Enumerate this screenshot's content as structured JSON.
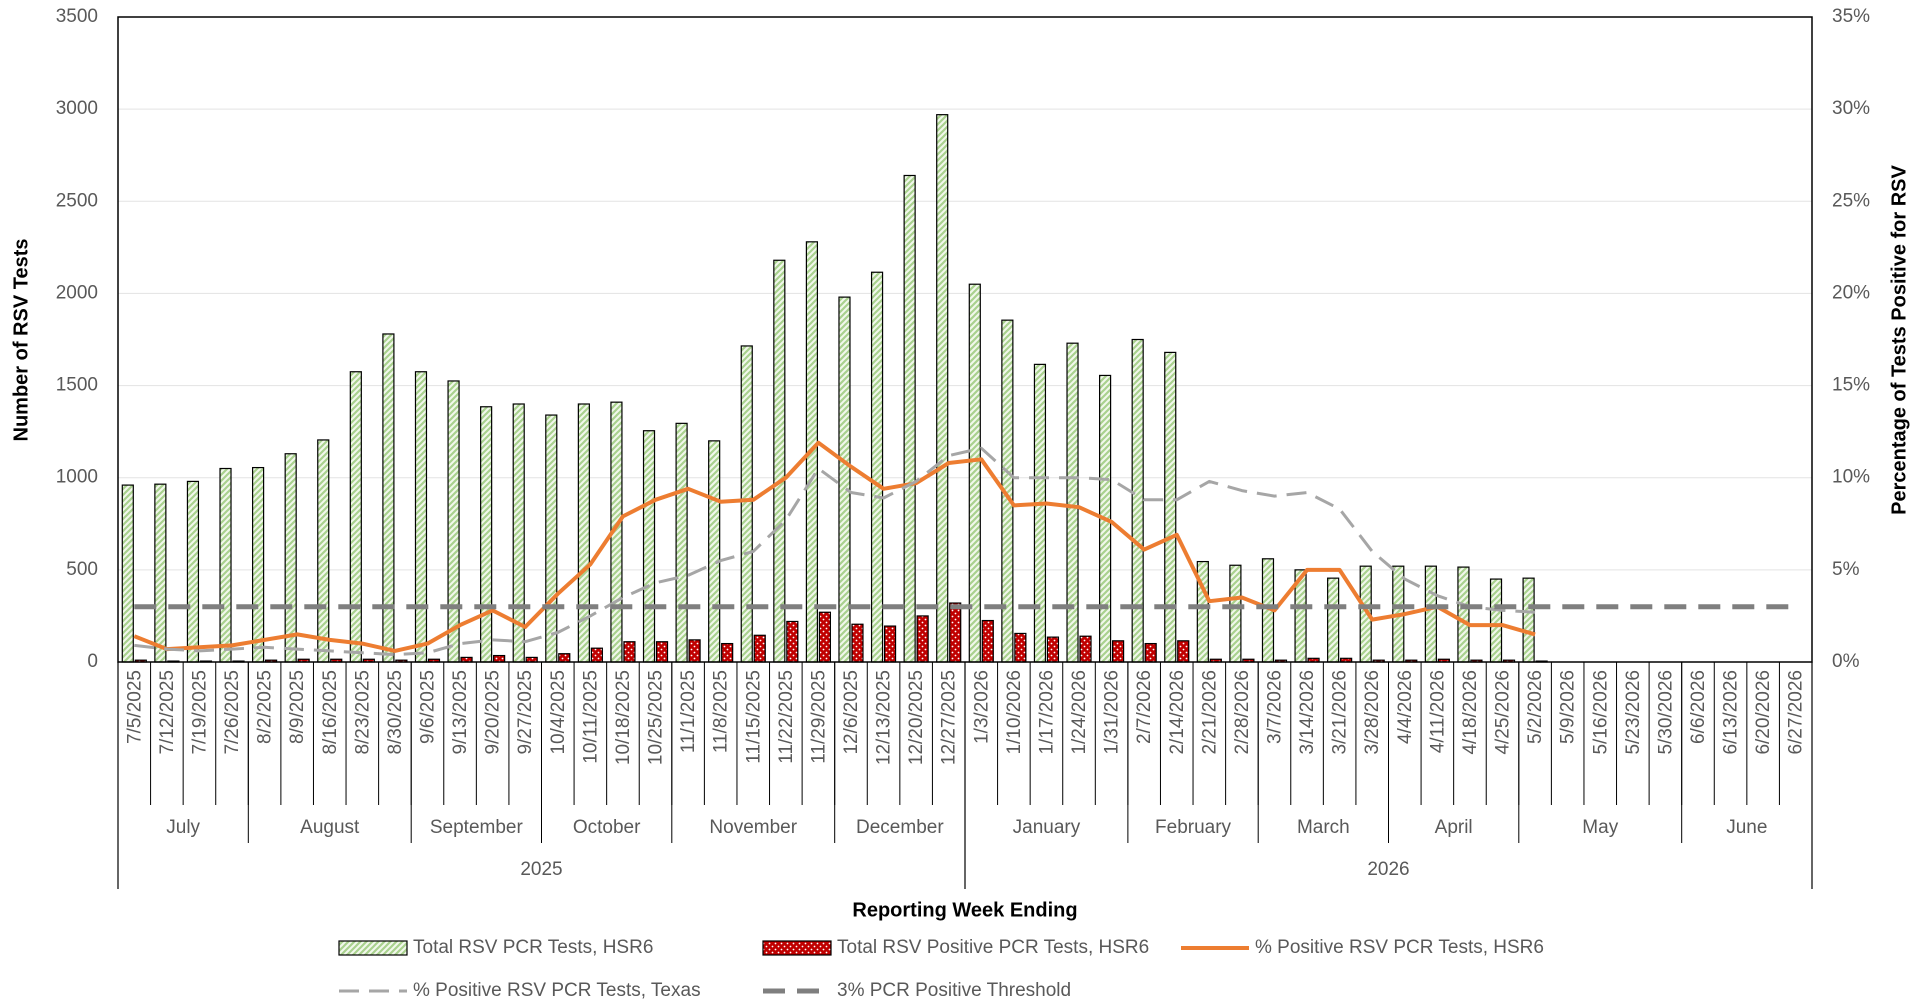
{
  "chart_data": {
    "type": "bar",
    "x_title": "Reporting Week Ending",
    "y_title": "Number of RSV Tests",
    "y2_title": "Percentage of Tests Positive for RSV",
    "x": [
      "7/5/2025",
      "7/12/2025",
      "7/19/2025",
      "7/26/2025",
      "8/2/2025",
      "8/9/2025",
      "8/16/2025",
      "8/23/2025",
      "8/30/2025",
      "9/6/2025",
      "9/13/2025",
      "9/20/2025",
      "9/27/2025",
      "10/4/2025",
      "10/11/2025",
      "10/18/2025",
      "10/25/2025",
      "11/1/2025",
      "11/8/2025",
      "11/15/2025",
      "11/22/2025",
      "11/29/2025",
      "12/6/2025",
      "12/13/2025",
      "12/20/2025",
      "12/27/2025",
      "1/3/2026",
      "1/10/2026",
      "1/17/2026",
      "1/24/2026",
      "1/31/2026",
      "2/7/2026",
      "2/14/2026",
      "2/21/2026",
      "2/28/2026",
      "3/7/2026",
      "3/14/2026",
      "3/21/2026",
      "3/28/2026",
      "4/4/2026",
      "4/11/2026",
      "4/18/2026",
      "4/25/2026",
      "5/2/2026",
      "5/9/2026",
      "5/16/2026",
      "5/23/2026",
      "5/30/2026",
      "6/6/2026",
      "6/13/2026",
      "6/20/2026",
      "6/27/2026"
    ],
    "months": [
      "July",
      "August",
      "September",
      "October",
      "November",
      "December",
      "January",
      "February",
      "March",
      "April",
      "May",
      "June"
    ],
    "years": [
      "2025",
      "2026"
    ],
    "ylim": [
      0,
      3500
    ],
    "yticks": [
      0,
      500,
      1000,
      1500,
      2000,
      2500,
      3000,
      3500
    ],
    "y2lim": [
      0,
      35
    ],
    "y2ticks": [
      {
        "value": 0,
        "label": "0%"
      },
      {
        "value": 5,
        "label": "5%"
      },
      {
        "value": 10,
        "label": "10%"
      },
      {
        "value": 15,
        "label": "15%"
      },
      {
        "value": 20,
        "label": "20%"
      },
      {
        "value": 25,
        "label": "25%"
      },
      {
        "value": 30,
        "label": "30%"
      },
      {
        "value": 35,
        "label": "35%"
      }
    ],
    "grid": true,
    "legend": "bottom",
    "series": [
      {
        "name": "Total RSV PCR Tests, HSR6",
        "type": "bar",
        "pattern": "hatch",
        "color": "#a9d18e",
        "values": [
          960,
          965,
          980,
          1050,
          1055,
          1130,
          1205,
          1575,
          1780,
          1575,
          1525,
          1385,
          1400,
          1340,
          1400,
          1410,
          1255,
          1295,
          1200,
          1715,
          2180,
          2280,
          1980,
          2115,
          2640,
          2970,
          2050,
          1855,
          1615,
          1730,
          1555,
          1750,
          1680,
          545,
          525,
          560,
          500,
          455,
          520,
          520,
          520,
          515,
          450,
          455,
          null,
          null,
          null,
          null,
          null,
          null,
          null,
          null
        ]
      },
      {
        "name": "Total RSV Positive PCR Tests, HSR6",
        "type": "bar",
        "pattern": "dots",
        "color": "#c00000",
        "values": [
          10,
          5,
          5,
          5,
          10,
          15,
          15,
          15,
          10,
          15,
          25,
          35,
          25,
          45,
          75,
          110,
          110,
          120,
          100,
          145,
          220,
          270,
          205,
          195,
          250,
          320,
          225,
          155,
          135,
          140,
          115,
          100,
          115,
          15,
          15,
          10,
          20,
          20,
          10,
          10,
          15,
          10,
          10,
          5,
          null,
          null,
          null,
          null,
          null,
          null,
          null,
          null
        ]
      },
      {
        "name": "% Positive RSV PCR Tests, HSR6",
        "type": "line",
        "axis": "y2",
        "style": "solid",
        "color": "#ed7d31",
        "values": [
          1.4,
          0.7,
          0.8,
          0.9,
          1.2,
          1.5,
          1.2,
          1.0,
          0.6,
          1.0,
          2.0,
          2.8,
          1.9,
          3.7,
          5.3,
          7.9,
          8.8,
          9.4,
          8.7,
          8.8,
          10.0,
          11.9,
          10.6,
          9.4,
          9.7,
          10.8,
          11.0,
          8.5,
          8.6,
          8.4,
          7.6,
          6.1,
          6.9,
          3.3,
          3.5,
          2.8,
          5.0,
          5.0,
          2.3,
          2.6,
          3.0,
          2.0,
          2.0,
          1.5,
          null,
          null,
          null,
          null,
          null,
          null,
          null,
          null
        ]
      },
      {
        "name": "% Positive RSV PCR Tests, Texas",
        "type": "line",
        "axis": "y2",
        "style": "dashed",
        "color": "#a6a6a6",
        "values": [
          0.9,
          0.7,
          0.6,
          0.7,
          0.8,
          0.7,
          0.6,
          0.5,
          0.4,
          0.5,
          1.0,
          1.2,
          1.1,
          1.6,
          2.5,
          3.5,
          4.3,
          4.7,
          5.5,
          6.0,
          7.7,
          10.5,
          9.2,
          8.9,
          9.8,
          11.2,
          11.6,
          10.0,
          10.0,
          10.0,
          9.9,
          8.8,
          8.8,
          9.8,
          9.3,
          9.0,
          9.2,
          8.3,
          6.0,
          4.5,
          3.6,
          3.0,
          2.8,
          2.7,
          null,
          null,
          null,
          null,
          null,
          null,
          null,
          null
        ]
      },
      {
        "name": "3% PCR Positive Threshold",
        "type": "line",
        "axis": "y2",
        "style": "thick-dashed",
        "color": "#7f7f7f",
        "values": [
          3,
          3,
          3,
          3,
          3,
          3,
          3,
          3,
          3,
          3,
          3,
          3,
          3,
          3,
          3,
          3,
          3,
          3,
          3,
          3,
          3,
          3,
          3,
          3,
          3,
          3,
          3,
          3,
          3,
          3,
          3,
          3,
          3,
          3,
          3,
          3,
          3,
          3,
          3,
          3,
          3,
          3,
          3,
          3,
          3,
          3,
          3,
          3,
          3,
          3,
          3,
          3
        ]
      }
    ]
  }
}
